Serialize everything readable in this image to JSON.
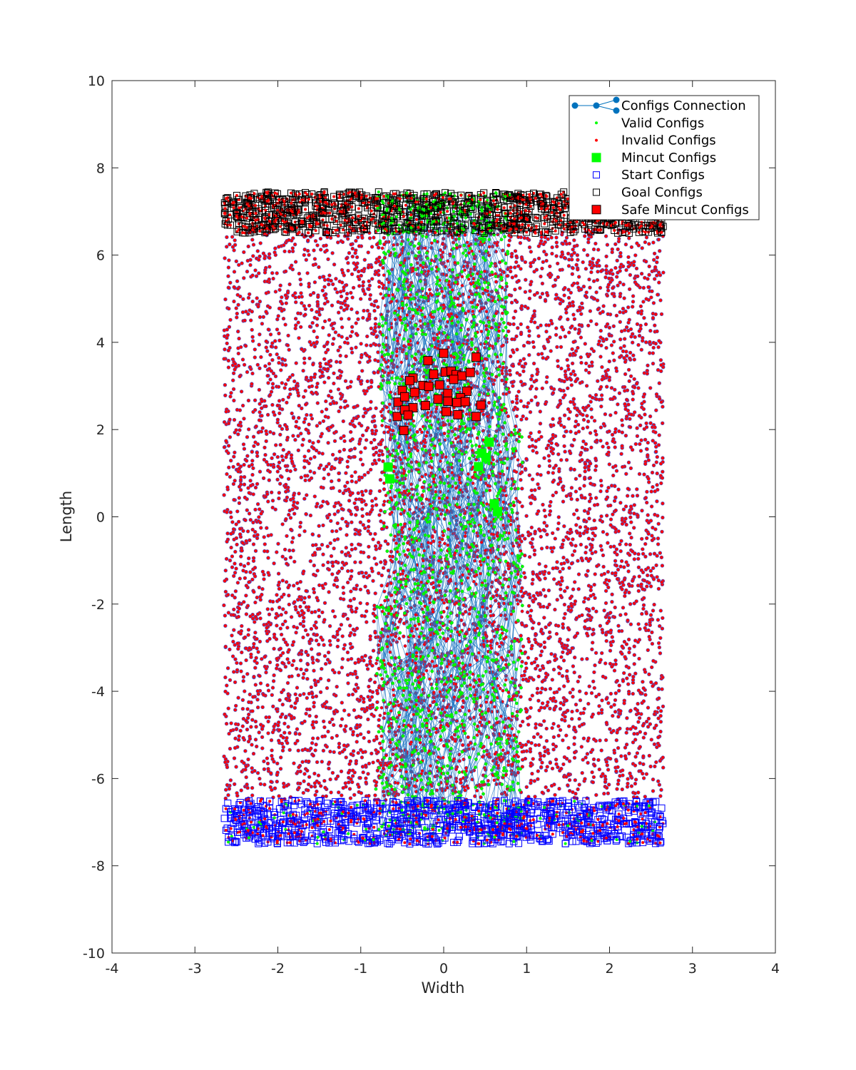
{
  "chart_data": {
    "type": "scatter",
    "title": "",
    "xlabel": "Width",
    "ylabel": "Length",
    "xlim": [
      -4,
      4
    ],
    "ylim": [
      -10,
      10
    ],
    "xticks": [
      "-4",
      "-3",
      "-2",
      "-1",
      "0",
      "1",
      "2",
      "3",
      "4"
    ],
    "yticks": [
      "10",
      "8",
      "6",
      "4",
      "2",
      "0",
      "-2",
      "-4",
      "-6",
      "-8",
      "-10"
    ],
    "grid": false,
    "legend_position": "top-right",
    "legend": [
      {
        "label": "Configs Connection",
        "marker": "line-dot",
        "color": "#0072BD"
      },
      {
        "label": "Valid Configs",
        "marker": "dot",
        "color": "#00FF00"
      },
      {
        "label": "Invalid Configs",
        "marker": "dot",
        "color": "#FF0000"
      },
      {
        "label": "Mincut Configs",
        "marker": "square-filled",
        "color": "#00FF00"
      },
      {
        "label": "Start Configs",
        "marker": "square-open",
        "color": "#0000FF"
      },
      {
        "label": "Goal Configs",
        "marker": "square-open",
        "color": "#000000"
      },
      {
        "label": "Safe Mincut Configs",
        "marker": "square-filled",
        "color": "#FF0000"
      }
    ],
    "regions": {
      "invalid_configs_x": [
        -2.65,
        2.65
      ],
      "invalid_configs_y": [
        -6.5,
        6.6
      ],
      "valid_corridor_x": [
        -0.8,
        0.9
      ],
      "valid_corridor_y": [
        -7.4,
        7.4
      ],
      "start_configs_x": [
        -2.65,
        2.65
      ],
      "start_configs_y": [
        -7.5,
        -6.5
      ],
      "goal_configs_x": [
        -2.65,
        2.65
      ],
      "goal_configs_y": [
        6.5,
        7.45
      ]
    },
    "series": [
      {
        "name": "Safe Mincut Configs",
        "points": [
          [
            -0.19,
            3.58
          ],
          [
            0.0,
            3.75
          ],
          [
            -0.37,
            3.18
          ],
          [
            -0.41,
            3.12
          ],
          [
            -0.25,
            3.01
          ],
          [
            -0.12,
            3.27
          ],
          [
            0.02,
            3.32
          ],
          [
            0.09,
            3.34
          ],
          [
            0.15,
            3.26
          ],
          [
            0.22,
            3.23
          ],
          [
            0.32,
            3.31
          ],
          [
            0.39,
            3.66
          ],
          [
            -0.5,
            2.9
          ],
          [
            -0.35,
            2.85
          ],
          [
            -0.18,
            2.99
          ],
          [
            -0.05,
            3.02
          ],
          [
            0.05,
            2.83
          ],
          [
            0.12,
            3.15
          ],
          [
            0.28,
            2.88
          ],
          [
            0.2,
            2.73
          ],
          [
            -0.55,
            2.63
          ],
          [
            -0.47,
            2.75
          ],
          [
            -0.37,
            2.5
          ],
          [
            -0.22,
            2.55
          ],
          [
            -0.07,
            2.7
          ],
          [
            0.05,
            2.65
          ],
          [
            0.16,
            2.62
          ],
          [
            0.26,
            2.64
          ],
          [
            0.45,
            2.56
          ],
          [
            -0.56,
            2.3
          ],
          [
            -0.47,
            2.45
          ],
          [
            -0.43,
            2.33
          ],
          [
            0.03,
            2.41
          ],
          [
            0.17,
            2.34
          ],
          [
            0.39,
            2.3
          ],
          [
            -0.48,
            1.98
          ]
        ]
      },
      {
        "name": "Mincut Configs",
        "points": [
          [
            -0.67,
            1.14
          ],
          [
            -0.65,
            0.87
          ],
          [
            0.46,
            1.46
          ],
          [
            0.42,
            1.15
          ],
          [
            0.51,
            1.36
          ],
          [
            0.55,
            1.71
          ],
          [
            0.61,
            0.3
          ],
          [
            0.65,
            0.12
          ]
        ]
      }
    ]
  }
}
